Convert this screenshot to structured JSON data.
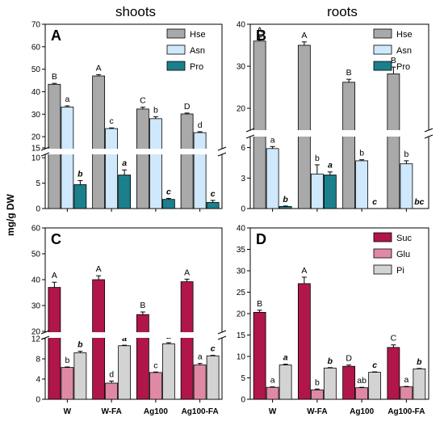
{
  "titles": {
    "left": "shoots",
    "right": "roots"
  },
  "y_axis_label": "mg/g DW",
  "x_categories": [
    "W",
    "W-FA",
    "Ag100",
    "Ag100-FA"
  ],
  "colors": {
    "Hse": "#a9a9a9",
    "Asn": "#cfe8fb",
    "Pro": "#1b7f8c",
    "Suc": "#b0164a",
    "Glu": "#e089a4",
    "Pi": "#d3d3d3"
  },
  "chart_data": [
    {
      "panel": "A",
      "type": "bar",
      "organ": "shoots",
      "categories": [
        "W",
        "W-FA",
        "Ag100",
        "Ag100-FA"
      ],
      "series": [
        {
          "name": "Hse",
          "values": [
            43.3,
            47.0,
            32.3,
            30.1
          ],
          "errors": [
            0.4,
            0.6,
            0.8,
            0.4
          ],
          "labels": [
            "B",
            "A",
            "C",
            "D"
          ],
          "label_style": "normal"
        },
        {
          "name": "Asn",
          "values": [
            33.2,
            23.6,
            28.0,
            21.8
          ],
          "errors": [
            0.5,
            0.3,
            0.9,
            0.4
          ],
          "labels": [
            "a",
            "c",
            "b",
            "d"
          ],
          "label_style": "normal"
        },
        {
          "name": "Pro",
          "values": [
            4.7,
            6.6,
            1.8,
            1.2
          ],
          "errors": [
            0.8,
            1.0,
            0.2,
            0.4
          ],
          "labels": [
            "b",
            "a",
            "c",
            "c"
          ],
          "label_style": "bold-italic"
        }
      ],
      "y_ticks_lower": [
        0,
        5,
        10
      ],
      "y_ticks_upper": [
        15,
        20,
        30,
        40,
        50,
        60,
        70
      ],
      "axis_break": true,
      "legend": "top-right"
    },
    {
      "panel": "B",
      "type": "bar",
      "organ": "roots",
      "categories": [
        "W",
        "W-FA",
        "Ag100",
        "Ag100-FA"
      ],
      "series": [
        {
          "name": "Hse",
          "values": [
            36.0,
            35.0,
            26.2,
            28.2
          ],
          "errors": [
            1.0,
            0.8,
            0.7,
            1.6
          ],
          "labels": [
            "A",
            "A",
            "B",
            "B"
          ],
          "label_style": "normal"
        },
        {
          "name": "Asn",
          "values": [
            5.9,
            3.4,
            4.7,
            4.4
          ],
          "errors": [
            0.2,
            0.9,
            0.1,
            0.3
          ],
          "labels": [
            "a",
            "b",
            "b",
            "b"
          ],
          "label_style": "normal"
        },
        {
          "name": "Pro",
          "values": [
            0.2,
            3.3,
            0.0,
            0.0
          ],
          "errors": [
            0.05,
            0.3,
            0,
            0
          ],
          "labels": [
            "b",
            "a",
            "c",
            "bc"
          ],
          "label_style": "bold-italic"
        }
      ],
      "y_ticks_lower": [
        0,
        3,
        6
      ],
      "y_ticks_upper": [
        20,
        30,
        40
      ],
      "axis_break": true,
      "legend": "top-right"
    },
    {
      "panel": "C",
      "type": "bar",
      "organ": "shoots",
      "categories": [
        "W",
        "W-FA",
        "Ag100",
        "Ag100-FA"
      ],
      "series": [
        {
          "name": "Suc",
          "values": [
            37.0,
            40.0,
            26.5,
            39.2
          ],
          "errors": [
            2.0,
            1.5,
            1.0,
            1.0
          ],
          "labels": [
            "A",
            "A",
            "B",
            "A"
          ],
          "label_style": "normal"
        },
        {
          "name": "Glu",
          "values": [
            6.3,
            3.2,
            5.3,
            6.8
          ],
          "errors": [
            0.1,
            0.4,
            0.1,
            0.3
          ],
          "labels": [
            "b",
            "d",
            "c",
            "a"
          ],
          "label_style": "normal"
        },
        {
          "name": "Pi",
          "values": [
            9.2,
            10.6,
            11.0,
            8.6
          ],
          "errors": [
            0.3,
            0.1,
            0.2,
            0.1
          ],
          "labels": [
            "b",
            "a",
            "a",
            "c"
          ],
          "label_style": "bold-italic"
        }
      ],
      "y_ticks_lower": [
        0,
        4,
        8,
        12
      ],
      "y_ticks_upper": [
        20,
        30,
        40,
        50,
        60
      ],
      "axis_break": true
    },
    {
      "panel": "D",
      "type": "bar",
      "organ": "roots",
      "categories": [
        "W",
        "W-FA",
        "Ag100",
        "Ag100-FA"
      ],
      "series": [
        {
          "name": "Suc",
          "values": [
            20.3,
            27.0,
            7.7,
            12.1
          ],
          "errors": [
            0.5,
            1.5,
            0.3,
            0.6
          ],
          "labels": [
            "B",
            "A",
            "D",
            "C"
          ],
          "label_style": "normal"
        },
        {
          "name": "Glu",
          "values": [
            2.8,
            2.2,
            2.7,
            2.9
          ],
          "errors": [
            0.1,
            0.2,
            0.1,
            0.1
          ],
          "labels": [
            "a",
            "b",
            "ab",
            "a"
          ],
          "label_style": "normal"
        },
        {
          "name": "Pi",
          "values": [
            8.0,
            7.3,
            6.3,
            7.1
          ],
          "errors": [
            0.2,
            0.1,
            0.1,
            0.1
          ],
          "labels": [
            "a",
            "b",
            "c",
            "b"
          ],
          "label_style": "bold-italic"
        }
      ],
      "y_ticks": [
        0,
        5,
        10,
        15,
        20,
        25,
        30,
        35,
        40
      ],
      "axis_break": false,
      "legend": "top-right"
    }
  ]
}
